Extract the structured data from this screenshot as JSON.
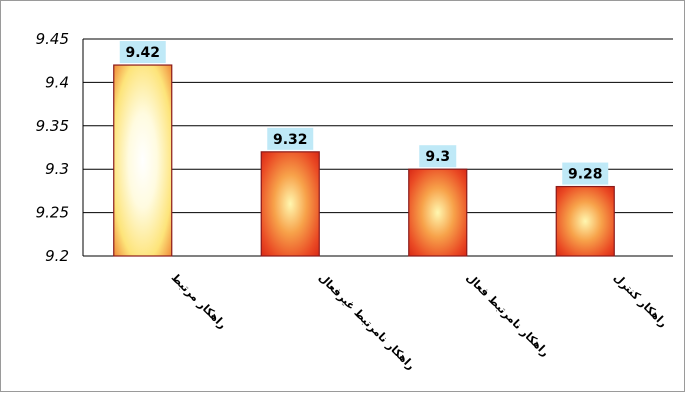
{
  "chart_data": {
    "type": "bar",
    "categories": [
      "راهکار مرتبط",
      "راهکار نامرتبط غیرفعال",
      "راهکار نامرتبط فعال",
      "راهکار کنترل"
    ],
    "values": [
      9.42,
      9.32,
      9.3,
      9.28
    ],
    "data_labels": [
      "9.42",
      "9.32",
      "9.3",
      "9.28"
    ],
    "y_ticks": [
      "9.2",
      "9.25",
      "9.3",
      "9.35",
      "9.4",
      "9.45"
    ],
    "ylim": [
      9.2,
      9.45
    ],
    "title": "",
    "xlabel": "",
    "ylabel": "",
    "grid": true,
    "legend": "none",
    "colors": {
      "bar_edge": "#8b1a1a",
      "bar_red": "#e8361e",
      "bar_yellow": "#fff7b0",
      "data_label_bg": "#bfe9f7",
      "gridline": "#000000",
      "plot_background": "#ffffff"
    }
  }
}
